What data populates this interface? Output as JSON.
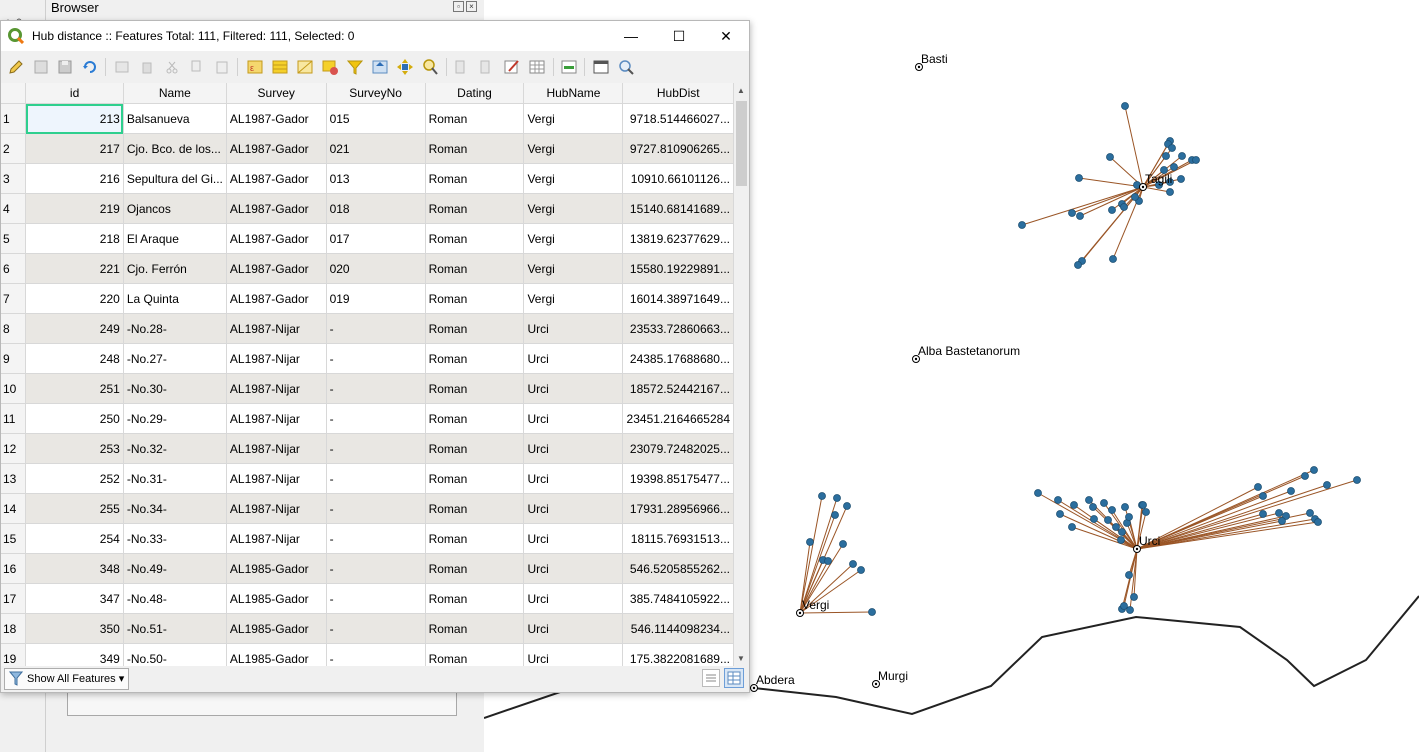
{
  "browser": {
    "title": "Browser"
  },
  "attribute_table": {
    "title": "Hub distance :: Features Total: 111, Filtered: 111, Selected: 0",
    "columns": [
      "id",
      "Name",
      "Survey",
      "SurveyNo",
      "Dating",
      "HubName",
      "HubDist"
    ],
    "rows": [
      {
        "rn": "1",
        "id": "213",
        "name": "Balsanueva",
        "survey": "AL1987-Gador",
        "surveyno": "015",
        "dating": "Roman",
        "hub": "Vergi",
        "dist": "9718.514466027..."
      },
      {
        "rn": "2",
        "id": "217",
        "name": "Cjo. Bco. de los...",
        "survey": "AL1987-Gador",
        "surveyno": "021",
        "dating": "Roman",
        "hub": "Vergi",
        "dist": "9727.810906265..."
      },
      {
        "rn": "3",
        "id": "216",
        "name": "Sepultura del Gi...",
        "survey": "AL1987-Gador",
        "surveyno": "013",
        "dating": "Roman",
        "hub": "Vergi",
        "dist": "10910.66101126..."
      },
      {
        "rn": "4",
        "id": "219",
        "name": "Ojancos",
        "survey": "AL1987-Gador",
        "surveyno": "018",
        "dating": "Roman",
        "hub": "Vergi",
        "dist": "15140.68141689..."
      },
      {
        "rn": "5",
        "id": "218",
        "name": "El Araque",
        "survey": "AL1987-Gador",
        "surveyno": "017",
        "dating": "Roman",
        "hub": "Vergi",
        "dist": "13819.62377629..."
      },
      {
        "rn": "6",
        "id": "221",
        "name": "Cjo. Ferrón",
        "survey": "AL1987-Gador",
        "surveyno": "020",
        "dating": "Roman",
        "hub": "Vergi",
        "dist": "15580.19229891..."
      },
      {
        "rn": "7",
        "id": "220",
        "name": "La Quinta",
        "survey": "AL1987-Gador",
        "surveyno": "019",
        "dating": "Roman",
        "hub": "Vergi",
        "dist": "16014.38971649..."
      },
      {
        "rn": "8",
        "id": "249",
        "name": "-No.28-",
        "survey": "AL1987-Nijar",
        "surveyno": "-",
        "dating": "Roman",
        "hub": "Urci",
        "dist": "23533.72860663..."
      },
      {
        "rn": "9",
        "id": "248",
        "name": "-No.27-",
        "survey": "AL1987-Nijar",
        "surveyno": "-",
        "dating": "Roman",
        "hub": "Urci",
        "dist": "24385.17688680..."
      },
      {
        "rn": "10",
        "id": "251",
        "name": "-No.30-",
        "survey": "AL1987-Nijar",
        "surveyno": "-",
        "dating": "Roman",
        "hub": "Urci",
        "dist": "18572.52442167..."
      },
      {
        "rn": "11",
        "id": "250",
        "name": "-No.29-",
        "survey": "AL1987-Nijar",
        "surveyno": "-",
        "dating": "Roman",
        "hub": "Urci",
        "dist": "23451.2164665284"
      },
      {
        "rn": "12",
        "id": "253",
        "name": "-No.32-",
        "survey": "AL1987-Nijar",
        "surveyno": "-",
        "dating": "Roman",
        "hub": "Urci",
        "dist": "23079.72482025..."
      },
      {
        "rn": "13",
        "id": "252",
        "name": "-No.31-",
        "survey": "AL1987-Nijar",
        "surveyno": "-",
        "dating": "Roman",
        "hub": "Urci",
        "dist": "19398.85175477..."
      },
      {
        "rn": "14",
        "id": "255",
        "name": "-No.34-",
        "survey": "AL1987-Nijar",
        "surveyno": "-",
        "dating": "Roman",
        "hub": "Urci",
        "dist": "17931.28956966..."
      },
      {
        "rn": "15",
        "id": "254",
        "name": "-No.33-",
        "survey": "AL1987-Nijar",
        "surveyno": "-",
        "dating": "Roman",
        "hub": "Urci",
        "dist": "18115.76931513..."
      },
      {
        "rn": "16",
        "id": "348",
        "name": "-No.49-",
        "survey": "AL1985-Gador",
        "surveyno": "-",
        "dating": "Roman",
        "hub": "Urci",
        "dist": "546.5205855262..."
      },
      {
        "rn": "17",
        "id": "347",
        "name": "-No.48-",
        "survey": "AL1985-Gador",
        "surveyno": "-",
        "dating": "Roman",
        "hub": "Urci",
        "dist": "385.7484105922..."
      },
      {
        "rn": "18",
        "id": "350",
        "name": "-No.51-",
        "survey": "AL1985-Gador",
        "surveyno": "-",
        "dating": "Roman",
        "hub": "Urci",
        "dist": "546.1144098234..."
      },
      {
        "rn": "19",
        "id": "349",
        "name": "-No.50-",
        "survey": "AL1985-Gador",
        "surveyno": "-",
        "dating": "Roman",
        "hub": "Urci",
        "dist": "175.3822081689..."
      }
    ],
    "show_all_label": "Show All Features"
  },
  "map": {
    "places": [
      "Basti",
      "Tagili",
      "Alba Bastetanorum",
      "Urci",
      "Vergi",
      "Abdera",
      "Murgi"
    ],
    "colors": {
      "point": "#2b6e9e",
      "spoke": "#9a5526",
      "line": "#222222"
    }
  }
}
